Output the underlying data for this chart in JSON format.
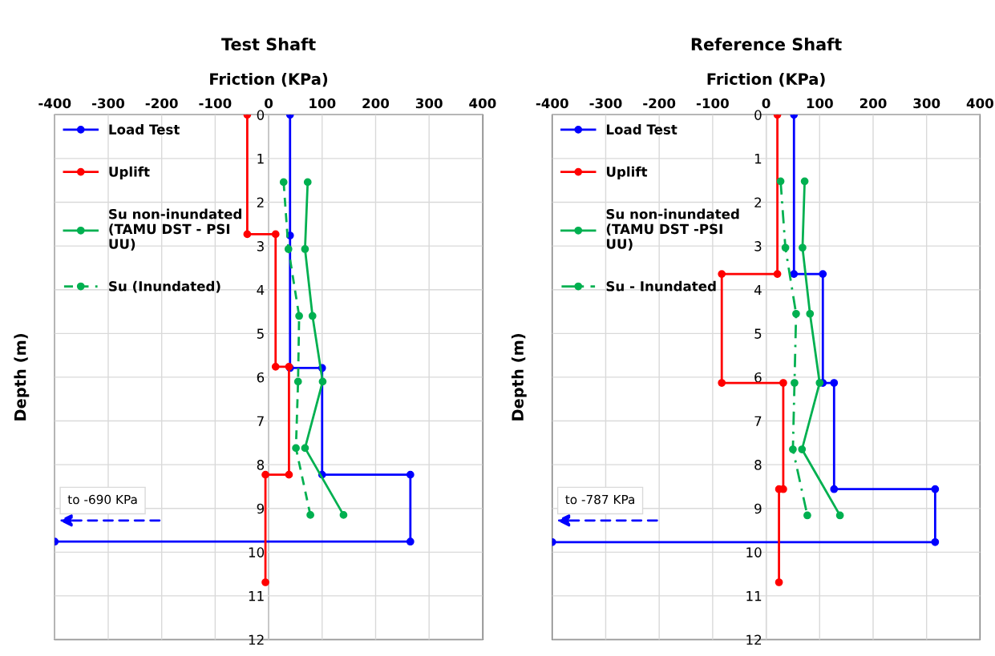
{
  "chart_data": [
    {
      "type": "line",
      "title": "Test Shaft",
      "xlabel": "Friction (KPa)",
      "ylabel": "Depth (m)",
      "xlim": [
        -400,
        400
      ],
      "xticks": [
        -400,
        -300,
        -200,
        -100,
        0,
        100,
        200,
        300,
        400
      ],
      "ylim": [
        12,
        0
      ],
      "yticks": [
        0,
        1,
        2,
        3,
        4,
        5,
        6,
        7,
        8,
        9,
        10,
        11,
        12
      ],
      "grid": true,
      "legend": "top left",
      "marker": "circle",
      "annotations": [
        "to -690 KPa"
      ],
      "series": [
        {
          "name": "Load Test",
          "color": "#0000ff",
          "x": [
            40,
            40,
            40,
            100,
            100,
            265,
            265,
            -400
          ],
          "values": [
            0,
            2.76,
            5.79,
            5.79,
            8.23,
            8.23,
            9.76,
            9.76
          ]
        },
        {
          "name": "Uplift",
          "color": "#ff0000",
          "x": [
            -40,
            -40,
            13,
            13,
            38,
            38,
            -6,
            -6
          ],
          "values": [
            0,
            2.73,
            2.73,
            5.76,
            5.76,
            8.23,
            8.23,
            10.69
          ]
        },
        {
          "name": "Su non-inundated\n(TAMU DST - PSI\nUU)",
          "color": "#00b050",
          "x": [
            73,
            68,
            82,
            101,
            68,
            140
          ],
          "values": [
            1.54,
            3.07,
            4.6,
            6.1,
            7.62,
            9.15
          ]
        },
        {
          "name": "Su (Inundated)",
          "color": "#00b050",
          "line_style": "dashed",
          "x": [
            28,
            37,
            57,
            55,
            51,
            78
          ],
          "values": [
            1.54,
            3.07,
            4.6,
            6.1,
            7.62,
            9.15
          ]
        }
      ]
    },
    {
      "type": "line",
      "title": "Reference Shaft",
      "xlabel": "Friction (KPa)",
      "ylabel": "Depth (m)",
      "xlim": [
        -400,
        400
      ],
      "xticks": [
        -400,
        -300,
        -200,
        -100,
        0,
        100,
        200,
        300,
        400
      ],
      "ylim": [
        12,
        0
      ],
      "yticks": [
        0,
        1,
        2,
        3,
        4,
        5,
        6,
        7,
        8,
        9,
        10,
        11,
        12
      ],
      "grid": true,
      "legend": "top left",
      "marker": "circle",
      "annotations": [
        "to -787 KPa"
      ],
      "series": [
        {
          "name": "Load Test",
          "color": "#0000ff",
          "x": [
            52,
            52,
            106,
            106,
            127,
            127,
            316,
            316,
            -400
          ],
          "values": [
            0,
            3.64,
            3.64,
            6.13,
            6.13,
            8.56,
            8.56,
            9.77,
            9.77
          ]
        },
        {
          "name": "Uplift",
          "color": "#ff0000",
          "x": [
            21,
            21,
            -83,
            -83,
            32,
            32,
            24,
            24
          ],
          "values": [
            0,
            3.64,
            3.64,
            6.13,
            6.13,
            8.56,
            8.56,
            10.69
          ]
        },
        {
          "name": "Su non-inundated\n(TAMU DST -PSI\nUU)",
          "color": "#00b050",
          "x": [
            72,
            68,
            82,
            100,
            67,
            138
          ],
          "values": [
            1.52,
            3.04,
            4.55,
            6.13,
            7.65,
            9.16
          ]
        },
        {
          "name": "Su - Inundated",
          "color": "#00b050",
          "line_style": "dashdot",
          "x": [
            27,
            36,
            56,
            53,
            50,
            77
          ],
          "values": [
            1.52,
            3.04,
            4.55,
            6.13,
            7.65,
            9.16
          ]
        }
      ]
    }
  ]
}
